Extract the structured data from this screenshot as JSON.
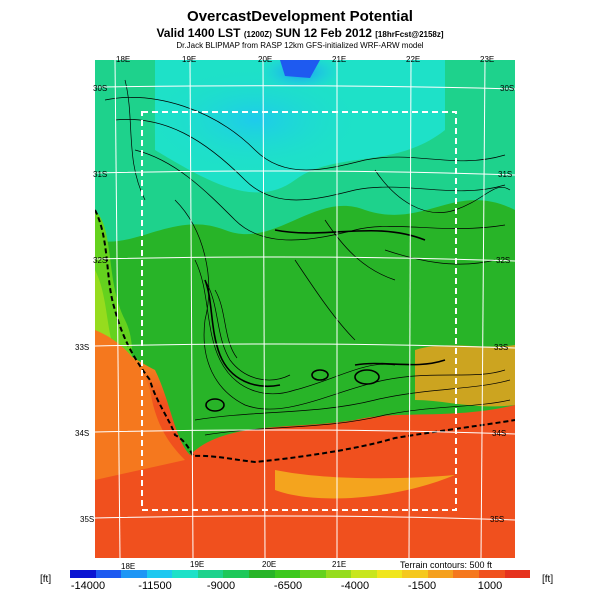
{
  "header": {
    "title": "OvercastDevelopment Potential",
    "subtitle_main": "Valid 1400 LST",
    "subtitle_small1": "(1200Z)",
    "subtitle_date": "SUN 12 Feb 2012",
    "subtitle_small2": "[18hrFcst@2158z]",
    "model_note": "Dr.Jack BLIPMAP from RASP 12km GFS-initialized WRF-ARW model"
  },
  "map": {
    "lon_labels_top": [
      "18E",
      "19E",
      "20E",
      "21E",
      "22E",
      "23E"
    ],
    "lon_labels_bottom": [
      "18E",
      "19E",
      "20E",
      "21E"
    ],
    "lat_labels_left": [
      "30S",
      "31S",
      "32S",
      "33S",
      "34S",
      "35S"
    ],
    "lat_labels_right": [
      "30S",
      "31S",
      "32S",
      "33S",
      "34S",
      "35S"
    ],
    "terrain_note": "Terrain contours: 500 ft"
  },
  "colorbar": {
    "unit": "[ft]",
    "tick_labels": [
      "-14000",
      "-11500",
      "-9000",
      "-6500",
      "-4000",
      "-1500",
      "1000"
    ],
    "colors": [
      "#0a14d2",
      "#1e5af0",
      "#1e96f5",
      "#1ec8f0",
      "#1ee1c8",
      "#1ed28c",
      "#1ec85a",
      "#28b428",
      "#3cc81e",
      "#64d21e",
      "#96dc1e",
      "#c8e61e",
      "#f0e61e",
      "#f5c81e",
      "#f5a01e",
      "#f5781e",
      "#f0501e",
      "#e6321e"
    ]
  }
}
